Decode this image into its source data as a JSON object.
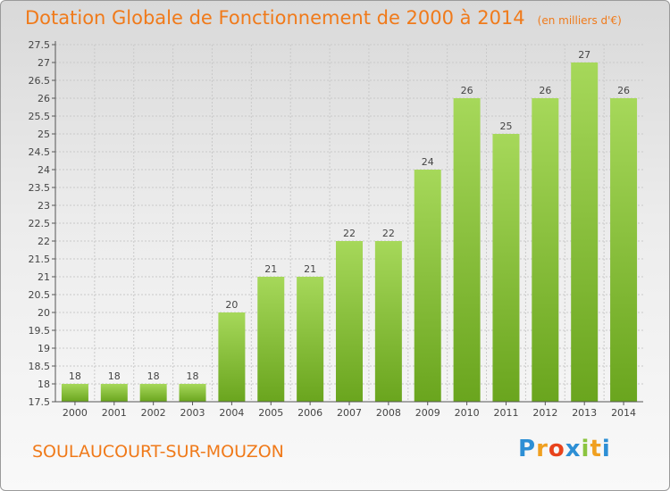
{
  "header": {
    "title": "Dotation Globale de Fonctionnement de 2000 à 2014",
    "unit": "(en milliers d'€)"
  },
  "footer": {
    "commune": "SOULAUCOURT-SUR-MOUZON",
    "logo_letters": [
      {
        "char": "P",
        "color": "#2d8fd5"
      },
      {
        "char": "r",
        "color": "#f0a020"
      },
      {
        "char": "o",
        "color": "#e8431c"
      },
      {
        "char": "x",
        "color": "#2d8fd5"
      },
      {
        "char": "i",
        "color": "#8bc43f"
      },
      {
        "char": "t",
        "color": "#f0a020"
      },
      {
        "char": "i",
        "color": "#2d8fd5"
      }
    ]
  },
  "colors": {
    "bar_light": "#a6d85a",
    "bar_dark": "#6aa51e",
    "grid": "#c9c9c9",
    "axis": "#555555"
  },
  "chart_data": {
    "type": "bar",
    "title": "Dotation Globale de Fonctionnement de 2000 à 2014",
    "categories": [
      "2000",
      "2001",
      "2002",
      "2003",
      "2004",
      "2005",
      "2006",
      "2007",
      "2008",
      "2009",
      "2010",
      "2011",
      "2012",
      "2013",
      "2014"
    ],
    "values": [
      18,
      18,
      18,
      18,
      20,
      21,
      21,
      22,
      22,
      24,
      26,
      25,
      26,
      27,
      26
    ],
    "ylim": [
      17.5,
      27.5
    ],
    "yticks": [
      "17.5",
      "18",
      "18.5",
      "19",
      "19.5",
      "20",
      "20.5",
      "21",
      "21.5",
      "22",
      "22.5",
      "23",
      "23.5",
      "24",
      "24.5",
      "25",
      "25.5",
      "26",
      "26.5",
      "27",
      "27.5"
    ],
    "grid": true,
    "legend": "none"
  }
}
